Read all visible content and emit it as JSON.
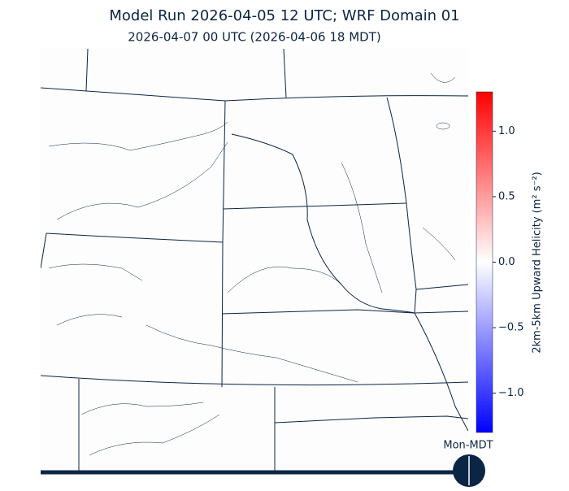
{
  "title": "Model Run 2026-04-05 12 UTC; WRF Domain 01",
  "subtitle": "2026-04-07 00 UTC  (2026-04-06 18 MDT)",
  "colorbar": {
    "label": "2km-5km Upward Helicity (m² s⁻²)",
    "lim": [
      -1.3,
      1.3
    ],
    "ticks": [
      {
        "value": 1.0,
        "label": "1.0"
      },
      {
        "value": 0.5,
        "label": "0.5"
      },
      {
        "value": 0.0,
        "label": "0.0"
      },
      {
        "value": -0.5,
        "label": "−0.5"
      },
      {
        "value": -1.0,
        "label": "−1.0"
      }
    ]
  },
  "timeline_label": "Mon-MDT"
}
